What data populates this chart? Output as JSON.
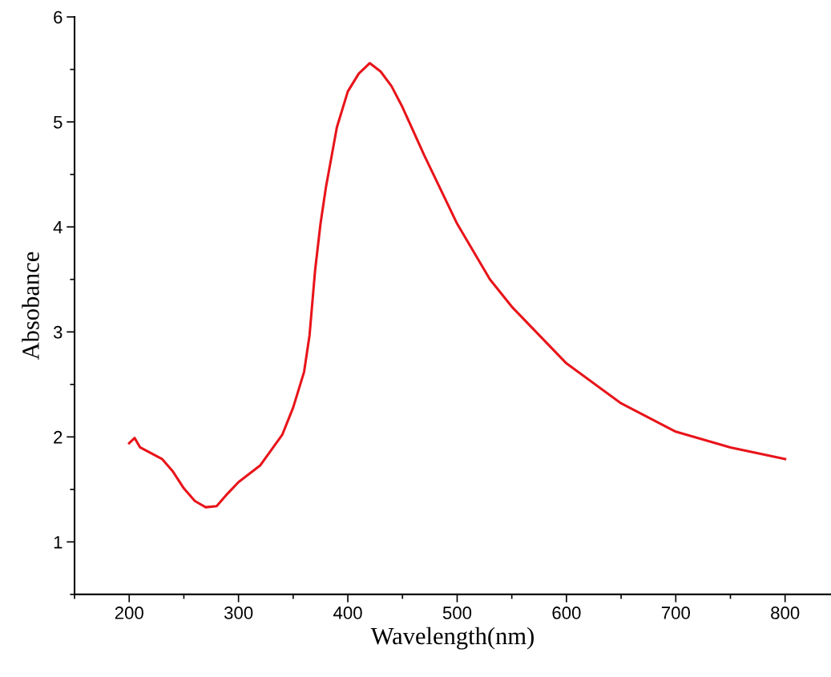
{
  "chart_data": {
    "type": "line",
    "xlabel": "Wavelength(nm)",
    "ylabel": "Absobance",
    "xlim": [
      150,
      842
    ],
    "xticks": [
      200,
      300,
      400,
      500,
      600,
      700,
      800
    ],
    "ylim": [
      0.5,
      6
    ],
    "yticks": [
      1,
      2,
      3,
      4,
      5,
      6
    ],
    "grid": false,
    "legend": false,
    "marker": "none",
    "line_style": "solid",
    "x": [
      200,
      205,
      210,
      230,
      240,
      250,
      260,
      270,
      280,
      290,
      300,
      320,
      340,
      350,
      360,
      365,
      370,
      375,
      380,
      390,
      400,
      410,
      420,
      430,
      440,
      450,
      470,
      500,
      530,
      550,
      600,
      650,
      700,
      750,
      800
    ],
    "series": [
      {
        "color": "#e8141a",
        "values": [
          1.94,
          1.99,
          1.9,
          1.79,
          1.67,
          1.51,
          1.39,
          1.33,
          1.34,
          1.46,
          1.57,
          1.73,
          2.02,
          2.28,
          2.62,
          2.97,
          3.58,
          4.03,
          4.38,
          4.95,
          5.29,
          5.46,
          5.56,
          5.48,
          5.34,
          5.14,
          4.68,
          4.03,
          3.5,
          3.24,
          2.7,
          2.32,
          2.05,
          1.9,
          1.79
        ]
      }
    ]
  }
}
